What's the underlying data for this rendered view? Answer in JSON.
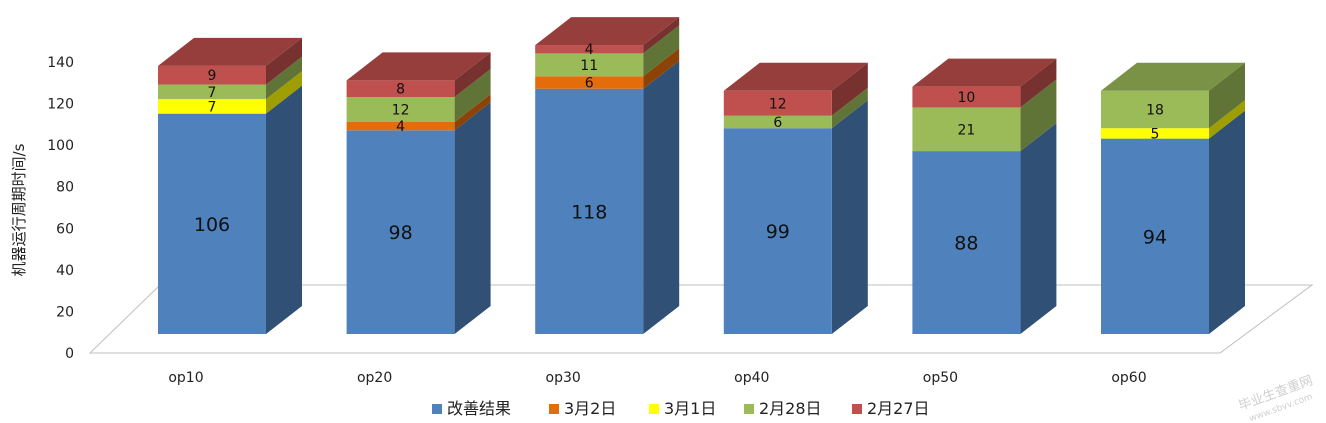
{
  "chart_data": {
    "type": "bar",
    "stacked": true,
    "three_d": true,
    "categories": [
      "op10",
      "op20",
      "op30",
      "op40",
      "op50",
      "op60"
    ],
    "series": [
      {
        "name": "改善结果",
        "color": "#4F81BD",
        "values": [
          106,
          98,
          118,
          99,
          88,
          94
        ]
      },
      {
        "name": "3月2日",
        "color": "#E46C0A",
        "values": [
          0,
          4,
          6,
          0,
          0,
          0
        ]
      },
      {
        "name": "3月1日",
        "color": "#FFFF00",
        "values": [
          7,
          0,
          0,
          0,
          0,
          5
        ]
      },
      {
        "name": "2月28日",
        "color": "#9BBB59",
        "values": [
          7,
          12,
          11,
          6,
          21,
          18
        ]
      },
      {
        "name": "2月27日",
        "color": "#C0504D",
        "values": [
          9,
          8,
          4,
          12,
          10,
          0
        ]
      }
    ],
    "ylabel": "机器运行周期时间/s",
    "xlabel": "",
    "title": "",
    "ylim": [
      0,
      140
    ],
    "yticks": [
      0,
      20,
      40,
      60,
      80,
      100,
      120,
      140
    ],
    "grid": false,
    "legend": "bottom"
  },
  "watermark": {
    "line1": "毕业生查重网",
    "line2": "www.sbvv.com"
  }
}
